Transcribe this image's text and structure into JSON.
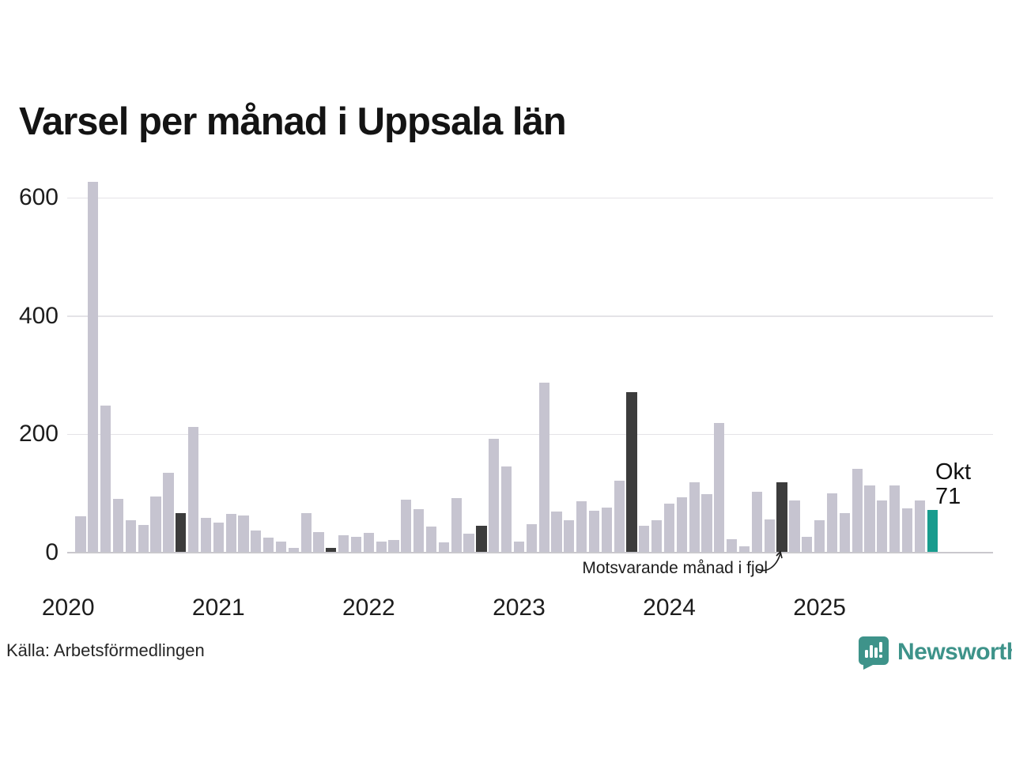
{
  "title": "Varsel per månad i Uppsala län",
  "source": "Källa: Arbetsförmedlingen",
  "annotation": {
    "text": "Motsvarande månad i fjol"
  },
  "last_point_label": {
    "month": "Okt",
    "value": "71"
  },
  "brand": {
    "name": "Newsworthy",
    "color": "#3e938a"
  },
  "chart_data": {
    "type": "bar",
    "title": "Varsel per månad i Uppsala län",
    "xlabel": "",
    "ylabel": "",
    "start_month": "2020-01",
    "end_month": "2025-10",
    "ylim": [
      0,
      600
    ],
    "yticks": [
      0,
      200,
      400,
      600
    ],
    "grid": "horizontal",
    "x_year_labels": [
      "2020",
      "2021",
      "2022",
      "2023",
      "2024",
      "2025"
    ],
    "values": [
      0,
      60,
      627,
      248,
      90,
      54,
      45,
      94,
      134,
      65,
      211,
      58,
      49,
      64,
      61,
      36,
      24,
      17,
      7,
      65,
      33,
      7,
      28,
      25,
      32,
      18,
      20,
      88,
      72,
      43,
      16,
      91,
      31,
      44,
      191,
      144,
      18,
      47,
      287,
      68,
      53,
      86,
      70,
      75,
      121,
      270,
      44,
      53,
      82,
      92,
      118,
      98,
      218,
      21,
      10,
      102,
      55,
      118,
      87,
      26,
      53,
      99,
      66,
      140,
      112,
      87,
      113,
      73,
      87,
      71
    ],
    "dark_highlight_indices": [
      9,
      21,
      33,
      45,
      57
    ],
    "dark_highlight_meaning": "Motsvarande månad i fjol (oktober varje år)",
    "current_index": 69,
    "current_label": "Okt",
    "current_value": 71,
    "colors": {
      "bar": "#c6c4d0",
      "dark": "#3c3c3c",
      "current": "#189c8e",
      "grid": "#e4e3e7",
      "zero_axis": "#c9c8cd"
    }
  }
}
